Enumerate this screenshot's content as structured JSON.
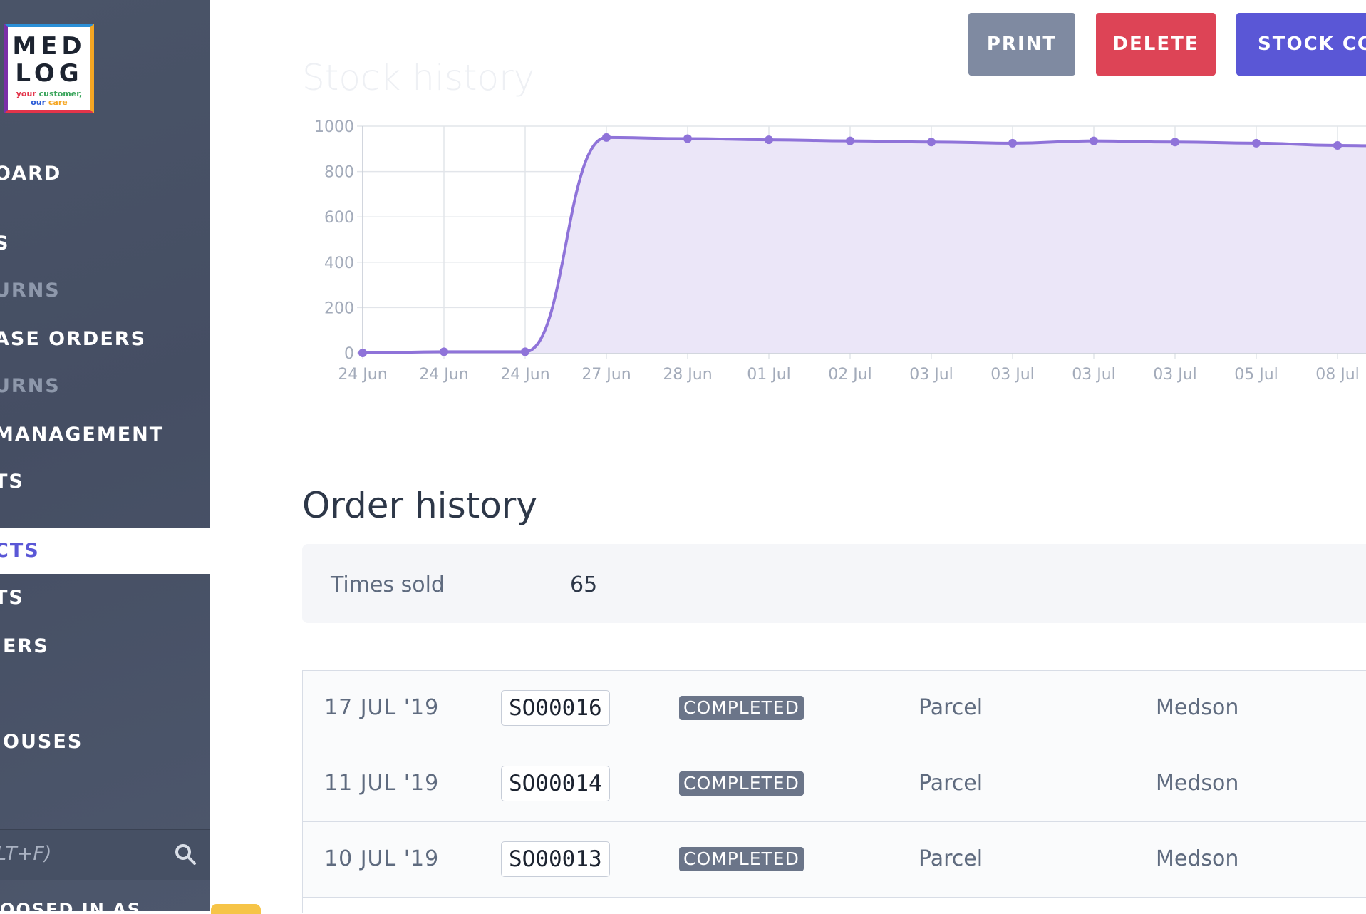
{
  "logo": {
    "line1": "MED",
    "line2": "LOG",
    "tag1a": "your ",
    "tag1b": "customer,",
    "tag2a": "our ",
    "tag2b": "care"
  },
  "sidebar": {
    "items": [
      {
        "label": "OARD",
        "top": 213
      },
      {
        "label": "S"
      },
      {
        "label": "URNS"
      },
      {
        "label": "ASE ORDERS"
      },
      {
        "label": "URNS"
      },
      {
        "label": " MANAGEMENT"
      },
      {
        "label": "TS"
      },
      {
        "label": "CTS"
      },
      {
        "label": "TS"
      },
      {
        "label": "IERS"
      },
      {
        "label": "IOUSES"
      }
    ],
    "search_placeholder": "LT+F)",
    "bottom_label": "OOSED IN AS"
  },
  "header": {
    "print_label": "PRINT",
    "delete_label": "DELETE",
    "stock_label": "STOCK COR"
  },
  "stock_history": {
    "title": "Stock history"
  },
  "chart_data": {
    "type": "area",
    "title": "Stock history",
    "categories": [
      "24 Jun",
      "24 Jun",
      "24 Jun",
      "27 Jun",
      "28 Jun",
      "01 Jul",
      "02 Jul",
      "03 Jul",
      "03 Jul",
      "03 Jul",
      "03 Jul",
      "05 Jul",
      "08 Jul",
      ""
    ],
    "values": [
      0,
      5,
      5,
      950,
      945,
      940,
      935,
      930,
      925,
      935,
      930,
      925,
      915,
      910
    ],
    "ylim": [
      0,
      1000
    ],
    "yticks": [
      0,
      200,
      400,
      600,
      800,
      1000
    ],
    "grid": true,
    "color": "#8f73d9",
    "fill": "#ebe6f8"
  },
  "order_history": {
    "title": "Order history",
    "times_sold_label": "Times sold",
    "times_sold_value": "65",
    "rows": [
      {
        "date": "17 JUL '19",
        "code": "SO00016",
        "status": "COMPLETED",
        "method": "Parcel",
        "carrier": "Medson"
      },
      {
        "date": "11 JUL '19",
        "code": "SO00014",
        "status": "COMPLETED",
        "method": "Parcel",
        "carrier": "Medson"
      },
      {
        "date": "10 JUL '19",
        "code": "SO00013",
        "status": "COMPLETED",
        "method": "Parcel",
        "carrier": "Medson"
      }
    ]
  }
}
